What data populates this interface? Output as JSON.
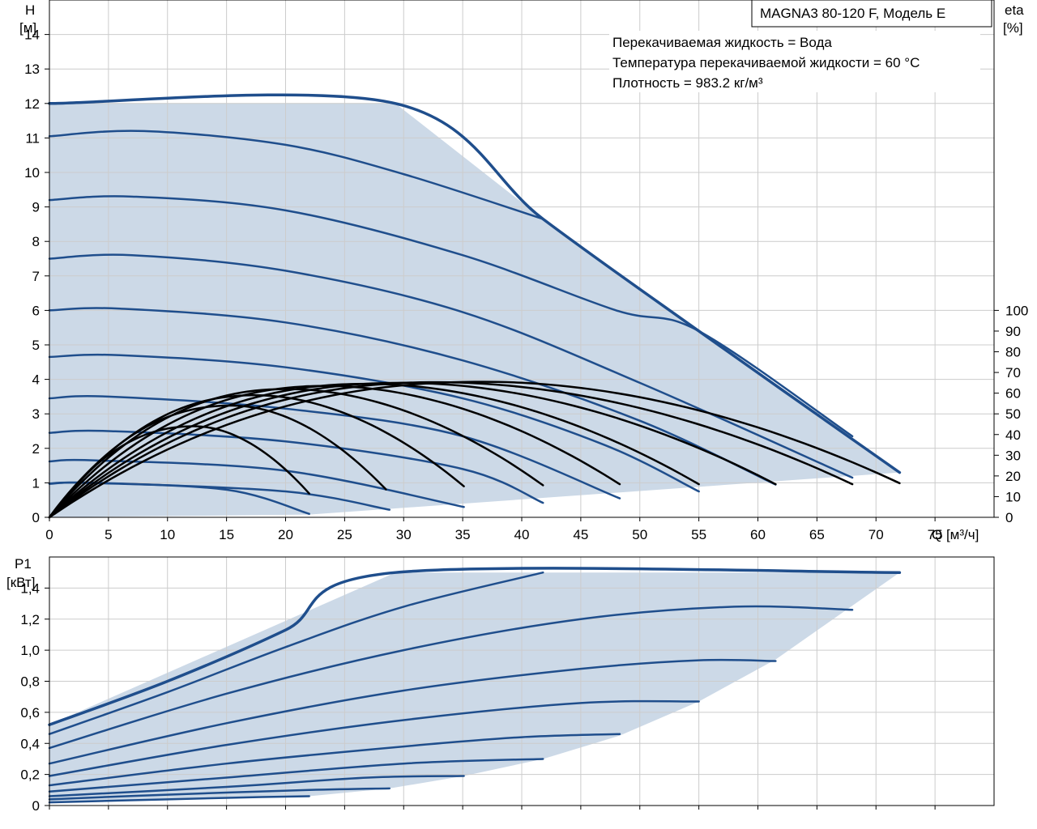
{
  "chart_data": [
    {
      "type": "line",
      "title": "MAGNA3 80-120 F, Модель E",
      "notes": [
        "Перекачиваемая жидкость = Вода",
        "Температура перекачиваемой жидкости = 60 °C",
        "Плотность = 983.2 кг/м³"
      ],
      "xlabel": "Q [м³/ч]",
      "ylabel": [
        "H",
        "[м]"
      ],
      "y2label": [
        "eta",
        "[%]"
      ],
      "xlim": [
        0,
        80
      ],
      "ylim": [
        0,
        15
      ],
      "y2lim": [
        0,
        100
      ],
      "x_ticks": [
        "0",
        "5",
        "10",
        "15",
        "20",
        "25",
        "30",
        "35",
        "40",
        "45",
        "50",
        "55",
        "60",
        "65",
        "70",
        "75"
      ],
      "y_ticks": [
        "0",
        "1",
        "2",
        "3",
        "4",
        "5",
        "6",
        "7",
        "8",
        "9",
        "10",
        "11",
        "12",
        "13",
        "14"
      ],
      "y2_ticks": [
        "0",
        "10",
        "20",
        "30",
        "40",
        "50",
        "60",
        "70",
        "80",
        "90",
        "100"
      ],
      "grid": true,
      "colors": {
        "curve": "#1f4e8c",
        "area": "#ccd9e7",
        "eta": "#000000",
        "grid": "#cccccc"
      },
      "envelope": [
        [
          0,
          12
        ],
        [
          29.3,
          12
        ],
        [
          41.8,
          8.65
        ],
        [
          55,
          5.4
        ],
        [
          72,
          1.3
        ],
        [
          22,
          0.08
        ],
        [
          0,
          0
        ]
      ],
      "series": [
        {
          "values": [
            [
              0,
              12
            ],
            [
              29.3,
              12
            ],
            [
              41.8,
              8.65
            ],
            [
              55,
              5.4
            ],
            [
              72,
              1.3
            ]
          ]
        },
        {
          "values": [
            [
              0,
              11.05
            ],
            [
              8,
              11.2
            ],
            [
              20,
              10.8
            ],
            [
              30,
              9.95
            ],
            [
              41.8,
              8.65
            ]
          ]
        },
        {
          "values": [
            [
              0,
              9.2
            ],
            [
              7,
              9.3
            ],
            [
              20,
              8.9
            ],
            [
              35,
              7.6
            ],
            [
              48,
              6.0
            ],
            [
              55,
              5.4
            ],
            [
              68,
              2.35
            ]
          ]
        },
        {
          "values": [
            [
              0,
              7.5
            ],
            [
              7,
              7.6
            ],
            [
              20,
              7.15
            ],
            [
              35,
              5.95
            ],
            [
              50,
              3.9
            ],
            [
              68,
              1.15
            ]
          ]
        },
        {
          "values": [
            [
              0,
              6.0
            ],
            [
              6,
              6.05
            ],
            [
              20,
              5.65
            ],
            [
              35,
              4.55
            ],
            [
              50,
              2.8
            ],
            [
              61.5,
              0.95
            ]
          ]
        },
        {
          "values": [
            [
              0,
              4.65
            ],
            [
              6,
              4.7
            ],
            [
              20,
              4.35
            ],
            [
              35,
              3.45
            ],
            [
              47,
              2.1
            ],
            [
              55,
              0.75
            ]
          ]
        },
        {
          "values": [
            [
              0,
              3.45
            ],
            [
              5,
              3.5
            ],
            [
              20,
              3.15
            ],
            [
              35,
              2.35
            ],
            [
              48.3,
              0.55
            ]
          ]
        },
        {
          "values": [
            [
              0,
              2.45
            ],
            [
              5,
              2.5
            ],
            [
              20,
              2.2
            ],
            [
              35,
              1.4
            ],
            [
              41.8,
              0.42
            ]
          ]
        },
        {
          "values": [
            [
              0,
              1.62
            ],
            [
              4,
              1.65
            ],
            [
              20,
              1.35
            ],
            [
              35.1,
              0.3
            ]
          ]
        },
        {
          "values": [
            [
              0,
              0.97
            ],
            [
              4,
              1.0
            ],
            [
              20,
              0.75
            ],
            [
              28.8,
              0.22
            ]
          ]
        },
        {
          "values": [
            [
              0,
              0.98
            ],
            [
              3,
              1.0
            ],
            [
              15,
              0.8
            ],
            [
              22,
              0.1
            ]
          ]
        }
      ],
      "eta_curves": [
        {
          "peak_q": 12.3,
          "peak_eta": 44,
          "end_q": 22,
          "end_eta": 11.5
        },
        {
          "peak_q": 15.5,
          "peak_eta": 54,
          "end_q": 28.5,
          "end_eta": 13.5
        },
        {
          "peak_q": 17.5,
          "peak_eta": 59,
          "end_q": 35.1,
          "end_eta": 15
        },
        {
          "peak_q": 20.2,
          "peak_eta": 62,
          "end_q": 41.8,
          "end_eta": 15.5
        },
        {
          "peak_q": 23.5,
          "peak_eta": 63.5,
          "end_q": 48.3,
          "end_eta": 16
        },
        {
          "peak_q": 27,
          "peak_eta": 64.5,
          "end_q": 55,
          "end_eta": 16
        },
        {
          "peak_q": 30,
          "peak_eta": 65,
          "end_q": 61.5,
          "end_eta": 16
        },
        {
          "peak_q": 33,
          "peak_eta": 65.3,
          "end_q": 68,
          "end_eta": 16
        },
        {
          "peak_q": 37,
          "peak_eta": 65.5,
          "end_q": 72,
          "end_eta": 16.5
        }
      ]
    },
    {
      "type": "line",
      "ylabel": [
        "P1",
        "[кВт]"
      ],
      "xlim": [
        0,
        80
      ],
      "ylim": [
        0,
        1.6
      ],
      "y_ticks": [
        "0",
        "0,2",
        "0,4",
        "0,6",
        "0,8",
        "1,0",
        "1,2",
        "1,4"
      ],
      "grid": true,
      "envelope": [
        [
          0,
          0.52
        ],
        [
          29.3,
          1.5
        ],
        [
          72,
          1.5
        ],
        [
          61.5,
          0.94
        ],
        [
          55,
          0.67
        ],
        [
          48.3,
          0.45
        ],
        [
          41.8,
          0.3
        ],
        [
          35.1,
          0.19
        ],
        [
          28.8,
          0.11
        ],
        [
          22,
          0.06
        ],
        [
          0,
          0.02
        ]
      ],
      "series": [
        {
          "values": [
            [
              0,
              0.52
            ],
            [
              10,
              0.8
            ],
            [
              20,
              1.13
            ],
            [
              29.3,
              1.5
            ],
            [
              72,
              1.5
            ]
          ]
        },
        {
          "values": [
            [
              0,
              0.46
            ],
            [
              10,
              0.73
            ],
            [
              20,
              1.02
            ],
            [
              30,
              1.28
            ],
            [
              41.8,
              1.5
            ]
          ]
        },
        {
          "values": [
            [
              0,
              0.37
            ],
            [
              15,
              0.72
            ],
            [
              30,
              1.0
            ],
            [
              45,
              1.2
            ],
            [
              58,
              1.28
            ],
            [
              68,
              1.26
            ]
          ]
        },
        {
          "values": [
            [
              0,
              0.27
            ],
            [
              15,
              0.53
            ],
            [
              30,
              0.74
            ],
            [
              45,
              0.88
            ],
            [
              55,
              0.935
            ],
            [
              61.5,
              0.93
            ]
          ]
        },
        {
          "values": [
            [
              0,
              0.19
            ],
            [
              15,
              0.39
            ],
            [
              30,
              0.55
            ],
            [
              45,
              0.66
            ],
            [
              55,
              0.67
            ]
          ]
        },
        {
          "values": [
            [
              0,
              0.13
            ],
            [
              15,
              0.27
            ],
            [
              30,
              0.38
            ],
            [
              40,
              0.44
            ],
            [
              48.3,
              0.46
            ]
          ]
        },
        {
          "values": [
            [
              0,
              0.09
            ],
            [
              15,
              0.18
            ],
            [
              30,
              0.27
            ],
            [
              41.8,
              0.3
            ]
          ]
        },
        {
          "values": [
            [
              0,
              0.06
            ],
            [
              15,
              0.12
            ],
            [
              27,
              0.18
            ],
            [
              35.1,
              0.19
            ]
          ]
        },
        {
          "values": [
            [
              0,
              0.04
            ],
            [
              10,
              0.07
            ],
            [
              22,
              0.1
            ],
            [
              28.8,
              0.11
            ]
          ]
        },
        {
          "values": [
            [
              0,
              0.02
            ],
            [
              10,
              0.04
            ],
            [
              18,
              0.055
            ],
            [
              22,
              0.06
            ]
          ]
        }
      ]
    }
  ]
}
